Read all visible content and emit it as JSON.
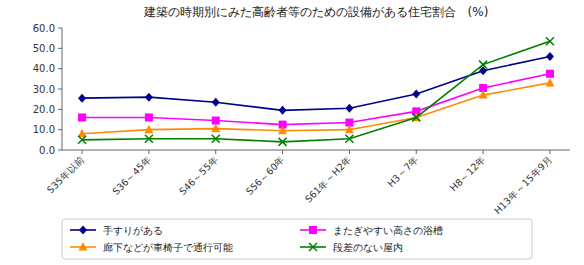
{
  "chart_data": {
    "type": "line",
    "title": "建築の時期別にみた高齢者等のための設備がある住宅割合　(%)",
    "categories": [
      "S35年以前",
      "S36～45年",
      "S46～55年",
      "S56～60年",
      "S61年～H2年",
      "H3～7年",
      "H8～12年",
      "H13年～15年9月"
    ],
    "series": [
      {
        "name": "手すりがある",
        "color": "#00008B",
        "marker": "diamond",
        "line_style": "solid",
        "values": [
          25.5,
          26.0,
          23.5,
          19.5,
          20.5,
          27.5,
          39.0,
          46.0
        ]
      },
      {
        "name": "またぎやすい高さの浴槽",
        "color": "#FF00FF",
        "marker": "square",
        "line_style": "solid",
        "values": [
          16.0,
          16.0,
          14.5,
          12.5,
          13.5,
          19.0,
          30.5,
          37.5
        ]
      },
      {
        "name": "廊下などが車椅子で通行可能",
        "color": "#FF8C00",
        "marker": "triangle",
        "line_style": "solid",
        "values": [
          8.0,
          10.0,
          10.5,
          9.5,
          10.0,
          16.0,
          27.0,
          33.0
        ]
      },
      {
        "name": "段差のない屋内",
        "color": "#008000",
        "marker": "x",
        "line_style": "solid",
        "values": [
          5.0,
          5.5,
          5.5,
          4.0,
          5.5,
          16.0,
          42.0,
          53.5
        ]
      }
    ],
    "ylim": [
      0,
      60
    ],
    "yticks": [
      {
        "value": 0,
        "label": "0.0"
      },
      {
        "value": 10,
        "label": "10.0"
      },
      {
        "value": 20,
        "label": "20.0"
      },
      {
        "value": 30,
        "label": "30.0"
      },
      {
        "value": 40,
        "label": "40.0"
      },
      {
        "value": 50,
        "label": "50.0"
      },
      {
        "value": 60,
        "label": "60.0"
      }
    ],
    "grid": false,
    "legend": "bottom"
  }
}
